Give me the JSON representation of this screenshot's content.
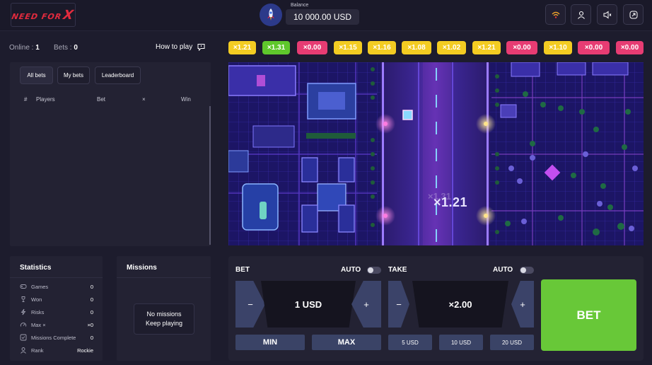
{
  "header": {
    "logo_text": "NEED FOR",
    "logo_x": "X",
    "balance_label": "Balance",
    "balance_value": "10 000.00 USD",
    "buttons": [
      "wifi-icon",
      "user-icon",
      "sound-icon",
      "menu-icon"
    ]
  },
  "info": {
    "online_label": "Online :",
    "online_value": "1",
    "bets_label": "Bets :",
    "bets_value": "0",
    "how_to_play": "How to play"
  },
  "bets_table": {
    "tabs": [
      "All bets",
      "My bets",
      "Leaderboard"
    ],
    "columns": [
      "#",
      "Players",
      "Bet",
      "×",
      "Win"
    ],
    "rows": []
  },
  "history": [
    {
      "value": "×1.21",
      "color": "yellow"
    },
    {
      "value": "×1.31",
      "color": "green"
    },
    {
      "value": "×0.00",
      "color": "red"
    },
    {
      "value": "×1.15",
      "color": "yellow"
    },
    {
      "value": "×1.16",
      "color": "yellow"
    },
    {
      "value": "×1.08",
      "color": "yellow"
    },
    {
      "value": "×1.02",
      "color": "yellow"
    },
    {
      "value": "×1.21",
      "color": "yellow"
    },
    {
      "value": "×0.00",
      "color": "red"
    },
    {
      "value": "×1.10",
      "color": "yellow"
    },
    {
      "value": "×0.00",
      "color": "red"
    },
    {
      "value": "×0.00",
      "color": "red"
    }
  ],
  "game": {
    "current_multiplier": "×1.21",
    "ghost_multiplier": "×1.31"
  },
  "statistics": {
    "title": "Statistics",
    "rows": [
      {
        "label": "Games",
        "value": "0",
        "icon": "gamepad-icon"
      },
      {
        "label": "Won",
        "value": "0",
        "icon": "trophy-icon"
      },
      {
        "label": "Risks",
        "value": "0",
        "icon": "lightning-icon"
      },
      {
        "label": "Max ×",
        "value": "×0",
        "icon": "speedometer-icon"
      },
      {
        "label": "Missions Complete",
        "value": "0",
        "icon": "check-icon"
      },
      {
        "label": "Rank",
        "value": "Rockie",
        "icon": "user-icon"
      }
    ]
  },
  "missions": {
    "title": "Missions",
    "empty_line1": "No missions",
    "empty_line2": "Keep playing"
  },
  "bet_panel": {
    "bet_label": "BET",
    "auto_label": "AUTO",
    "take_label": "TAKE",
    "bet_value": "1 USD",
    "take_value": "×2.00",
    "minus": "−",
    "plus": "+",
    "min_label": "MIN",
    "max_label": "MAX",
    "quick_take": [
      "5 USD",
      "10 USD",
      "20 USD"
    ],
    "bet_button": "BET"
  },
  "colors": {
    "accent_green": "#68c838",
    "yellow": "#f3cc22",
    "red": "#e73c73",
    "background": "#1d1c2d"
  }
}
